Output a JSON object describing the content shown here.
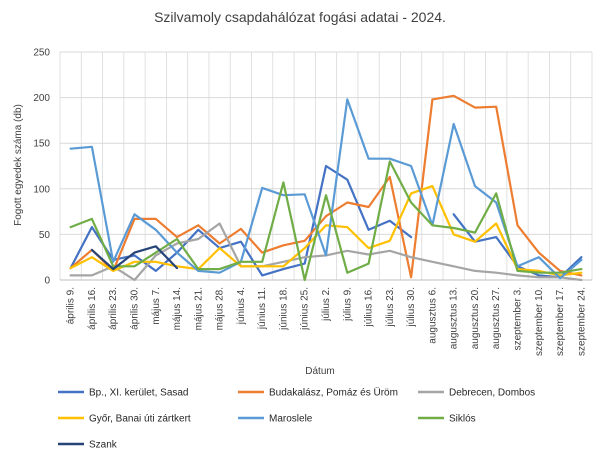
{
  "chart_data": {
    "type": "line",
    "title": "Szilvamoly csapdahálózat fogási adatai - 2024.",
    "xlabel": "Dátum",
    "ylabel": "Fogott egyedek száma (db)",
    "ylim": [
      0,
      250
    ],
    "yticks": [
      0,
      50,
      100,
      150,
      200,
      250
    ],
    "grid": true,
    "legend_position": "bottom",
    "categories": [
      "április 9.",
      "április 16.",
      "április 23.",
      "április 30.",
      "május 7.",
      "május 14.",
      "május 21.",
      "május 28.",
      "június 4.",
      "június 11.",
      "június 18.",
      "június 25.",
      "július 2.",
      "július 9.",
      "július 16.",
      "július 23.",
      "július 30.",
      "augusztus 6.",
      "augusztus 13.",
      "augusztus 20.",
      "augusztus 27.",
      "szeptember 3.",
      "szeptember 10.",
      "szeptember 17.",
      "szeptember 24."
    ],
    "series": [
      {
        "name": "Bp., XI. kerület, Sasad",
        "color": "#4472C4",
        "values": [
          13,
          58,
          22,
          27,
          10,
          30,
          55,
          35,
          42,
          5,
          12,
          18,
          125,
          110,
          55,
          65,
          47,
          null,
          72,
          42,
          47,
          15,
          5,
          3,
          25
        ]
      },
      {
        "name": "Budakalász, Pomáz és Üröm",
        "color": "#ED7D31",
        "values": [
          13,
          33,
          10,
          67,
          67,
          47,
          60,
          40,
          56,
          30,
          38,
          43,
          70,
          85,
          80,
          113,
          3,
          198,
          202,
          189,
          190,
          60,
          30,
          10,
          5
        ]
      },
      {
        "name": "Debrecen, Dombos",
        "color": "#A5A5A5",
        "values": [
          5,
          5,
          15,
          0,
          27,
          40,
          45,
          62,
          15,
          15,
          20,
          25,
          27,
          32,
          28,
          32,
          25,
          20,
          15,
          10,
          8,
          5,
          3,
          3,
          0
        ]
      },
      {
        "name": "Győr, Banai úti zártkert",
        "color": "#FFC000",
        "values": [
          13,
          25,
          10,
          20,
          20,
          15,
          12,
          35,
          15,
          15,
          15,
          35,
          60,
          58,
          35,
          43,
          95,
          103,
          50,
          42,
          62,
          12,
          10,
          5,
          8
        ]
      },
      {
        "name": "Maroslele",
        "color": "#5B9BD5",
        "values": [
          144,
          146,
          20,
          72,
          55,
          30,
          10,
          8,
          20,
          101,
          93,
          94,
          27,
          198,
          133,
          133,
          125,
          60,
          171,
          103,
          85,
          15,
          25,
          2,
          22
        ]
      },
      {
        "name": "Siklós",
        "color": "#70AD47",
        "values": [
          58,
          67,
          15,
          15,
          30,
          45,
          12,
          12,
          20,
          20,
          107,
          0,
          93,
          8,
          18,
          130,
          85,
          60,
          57,
          52,
          95,
          10,
          8,
          8,
          12
        ]
      },
      {
        "name": "Szank",
        "color": "#264478",
        "values": [
          null,
          33,
          12,
          30,
          37,
          13,
          null,
          null,
          null,
          null,
          null,
          null,
          null,
          null,
          null,
          null,
          null,
          null,
          null,
          null,
          null,
          null,
          null,
          null,
          null
        ]
      }
    ]
  }
}
